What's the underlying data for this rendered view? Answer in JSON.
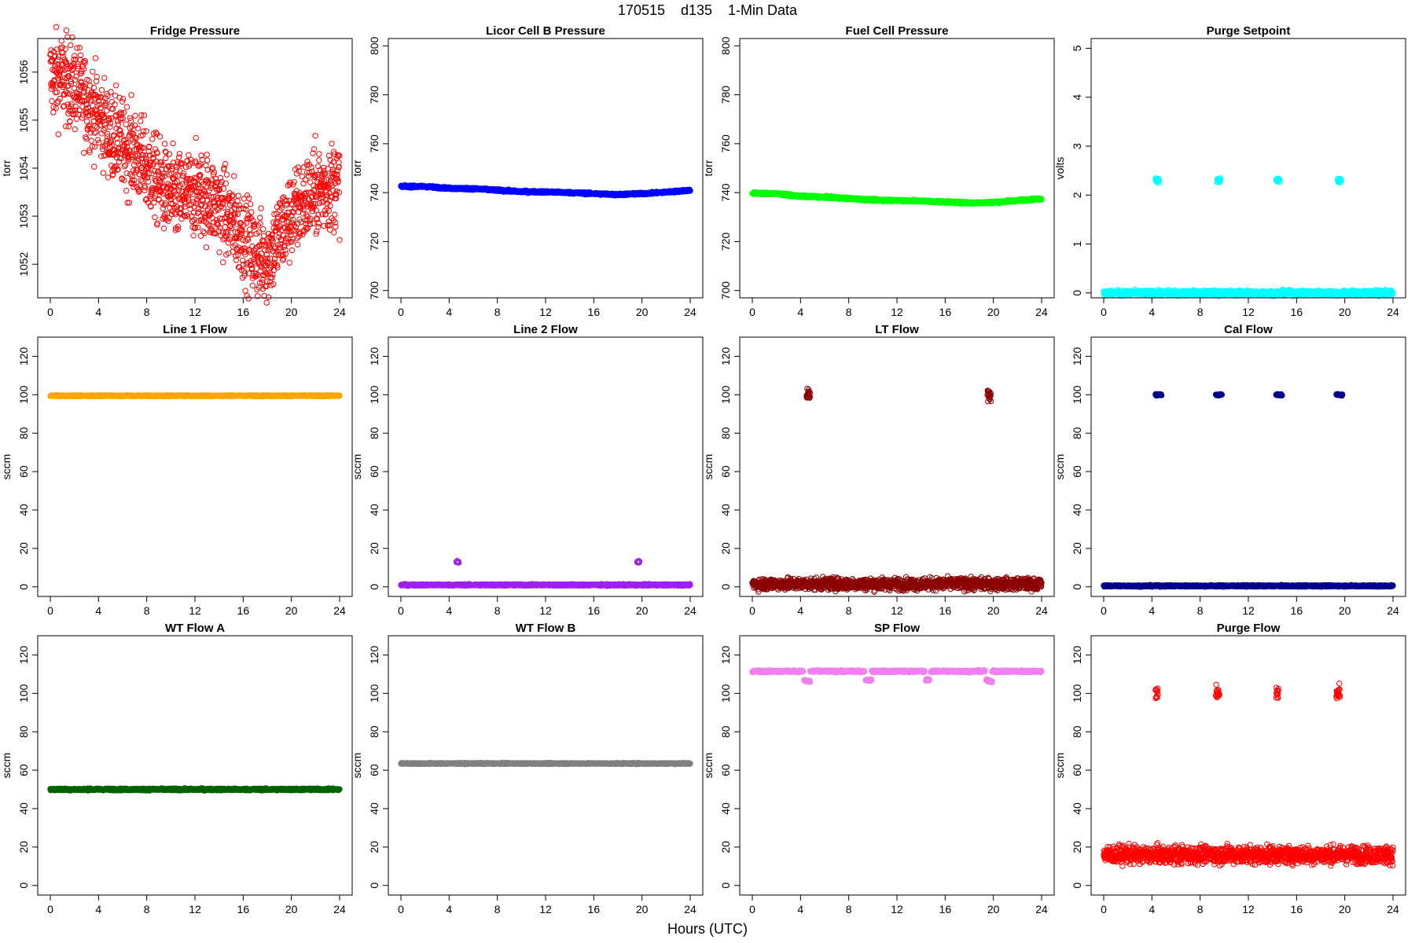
{
  "figure": {
    "title": "170515    d135    1-Min Data",
    "xlabel": "Hours (UTC)"
  },
  "chart_data": [
    {
      "type": "scatter",
      "title": "Fridge Pressure",
      "ylabel": "torr",
      "color": "#ff0000",
      "marker": "hollow-circle",
      "xlim": [
        0,
        24
      ],
      "ylim": [
        1051.3,
        1056.7
      ],
      "xticks": [
        0,
        4,
        8,
        12,
        16,
        20,
        24
      ],
      "yticks": [
        1052,
        1053,
        1054,
        1055,
        1056
      ],
      "segments": [
        {
          "x": [
            0,
            1,
            2,
            3,
            4,
            5,
            6,
            7,
            8,
            9,
            10,
            11,
            12,
            13,
            14,
            15,
            16,
            17,
            18,
            19,
            20,
            21,
            22,
            23,
            24
          ],
          "y": [
            1055.9,
            1055.9,
            1055.7,
            1055.4,
            1055.1,
            1054.7,
            1054.5,
            1054.3,
            1054.0,
            1053.7,
            1053.4,
            1053.4,
            1053.5,
            1053.4,
            1053.2,
            1052.9,
            1052.6,
            1052.2,
            1052.1,
            1052.6,
            1053.0,
            1053.3,
            1053.5,
            1053.6,
            1053.7
          ]
        }
      ],
      "spread": 0.9
    },
    {
      "type": "scatter",
      "title": "Licor Cell B Pressure",
      "ylabel": "torr",
      "color": "#0000ff",
      "marker": "hollow-circle",
      "xlim": [
        0,
        24
      ],
      "ylim": [
        697,
        803
      ],
      "xticks": [
        0,
        4,
        8,
        12,
        16,
        20,
        24
      ],
      "yticks": [
        700,
        720,
        740,
        760,
        780,
        800
      ],
      "segments": [
        {
          "x": [
            0,
            2,
            4,
            6,
            8,
            10,
            12,
            14,
            16,
            18,
            20,
            22,
            24
          ],
          "y": [
            742.5,
            742.5,
            741.8,
            741.6,
            741.0,
            740.4,
            740.3,
            740.0,
            739.6,
            739.2,
            739.6,
            740.2,
            741.0
          ]
        }
      ],
      "spread": 0.4
    },
    {
      "type": "scatter",
      "title": "Fuel Cell Pressure",
      "ylabel": "torr",
      "color": "#00ff00",
      "marker": "hollow-circle",
      "xlim": [
        0,
        24
      ],
      "ylim": [
        697,
        803
      ],
      "xticks": [
        0,
        4,
        8,
        12,
        16,
        20,
        24
      ],
      "yticks": [
        700,
        720,
        740,
        760,
        780,
        800
      ],
      "segments": [
        {
          "x": [
            0,
            2,
            4,
            6,
            8,
            10,
            12,
            14,
            16,
            18,
            20,
            22,
            24
          ],
          "y": [
            739.8,
            739.6,
            738.5,
            738.2,
            737.6,
            737.0,
            736.8,
            736.6,
            736.2,
            735.8,
            736.0,
            736.8,
            737.5
          ]
        }
      ],
      "spread": 0.4
    },
    {
      "type": "scatter",
      "title": "Purge Setpoint",
      "ylabel": "volts",
      "color": "#00ffff",
      "marker": "hollow-circle",
      "xlim": [
        0,
        24
      ],
      "ylim": [
        -0.1,
        5.2
      ],
      "xticks": [
        0,
        4,
        8,
        12,
        16,
        20,
        24
      ],
      "yticks": [
        0,
        1,
        2,
        3,
        4,
        5
      ],
      "segments": [
        {
          "x": [
            0,
            24
          ],
          "y": [
            0,
            0
          ]
        },
        {
          "x": [
            4.3,
            4.6
          ],
          "y": [
            2.3,
            2.3
          ]
        },
        {
          "x": [
            9.4,
            9.7
          ],
          "y": [
            2.3,
            2.3
          ]
        },
        {
          "x": [
            14.3,
            14.6
          ],
          "y": [
            2.3,
            2.3
          ]
        },
        {
          "x": [
            19.4,
            19.7
          ],
          "y": [
            2.3,
            2.3
          ]
        }
      ],
      "spread": 0.05
    },
    {
      "type": "scatter",
      "title": "Line 1 Flow",
      "ylabel": "sccm",
      "color": "#ffa500",
      "marker": "hollow-circle",
      "xlim": [
        0,
        24
      ],
      "ylim": [
        -5,
        130
      ],
      "xticks": [
        0,
        4,
        8,
        12,
        16,
        20,
        24
      ],
      "yticks": [
        0,
        20,
        40,
        60,
        80,
        100,
        120
      ],
      "segments": [
        {
          "x": [
            0,
            24
          ],
          "y": [
            99.5,
            99.5
          ]
        }
      ],
      "spread": 0.3
    },
    {
      "type": "scatter",
      "title": "Line 2 Flow",
      "ylabel": "sccm",
      "color": "#a020f0",
      "marker": "hollow-circle",
      "xlim": [
        0,
        24
      ],
      "ylim": [
        -5,
        130
      ],
      "xticks": [
        0,
        4,
        8,
        12,
        16,
        20,
        24
      ],
      "yticks": [
        0,
        20,
        40,
        60,
        80,
        100,
        120
      ],
      "segments": [
        {
          "x": [
            0,
            24
          ],
          "y": [
            1,
            1
          ]
        },
        {
          "x": [
            4.8,
            4.8,
            4.8,
            4.6
          ],
          "y": [
            13,
            5,
            2,
            -3
          ]
        },
        {
          "x": [
            19.8,
            19.8,
            19.8,
            19.6
          ],
          "y": [
            13,
            5,
            2,
            -3
          ]
        }
      ],
      "spread": 0.4
    },
    {
      "type": "scatter",
      "title": "LT Flow",
      "ylabel": "sccm",
      "color": "#8b0000",
      "marker": "hollow-circle",
      "xlim": [
        0,
        24
      ],
      "ylim": [
        -5,
        130
      ],
      "xticks": [
        0,
        4,
        8,
        12,
        16,
        20,
        24
      ],
      "yticks": [
        0,
        20,
        40,
        60,
        80,
        100,
        120
      ],
      "segments": [
        {
          "x": [
            0,
            24
          ],
          "y": [
            1.5,
            1.5
          ]
        },
        {
          "x": [
            4.5,
            4.8
          ],
          "y": [
            100,
            100
          ]
        },
        {
          "x": [
            19.5,
            19.8
          ],
          "y": [
            100,
            100
          ]
        }
      ],
      "spread": 3.0
    },
    {
      "type": "scatter",
      "title": "Cal Flow",
      "ylabel": "sccm",
      "color": "#00008b",
      "marker": "hollow-circle",
      "xlim": [
        0,
        24
      ],
      "ylim": [
        -5,
        130
      ],
      "xticks": [
        0,
        4,
        8,
        12,
        16,
        20,
        24
      ],
      "yticks": [
        0,
        20,
        40,
        60,
        80,
        100,
        120
      ],
      "segments": [
        {
          "x": [
            0,
            24
          ],
          "y": [
            0.5,
            0.5
          ]
        },
        {
          "x": [
            4.3,
            4.8
          ],
          "y": [
            100,
            100
          ]
        },
        {
          "x": [
            9.3,
            9.8
          ],
          "y": [
            100,
            100
          ]
        },
        {
          "x": [
            14.3,
            14.8
          ],
          "y": [
            100,
            100
          ]
        },
        {
          "x": [
            19.3,
            19.8
          ],
          "y": [
            100,
            100
          ]
        }
      ],
      "spread": 0.4
    },
    {
      "type": "scatter",
      "title": "WT Flow A",
      "ylabel": "sccm",
      "color": "#006400",
      "marker": "hollow-circle",
      "xlim": [
        0,
        24
      ],
      "ylim": [
        -5,
        130
      ],
      "xticks": [
        0,
        4,
        8,
        12,
        16,
        20,
        24
      ],
      "yticks": [
        0,
        20,
        40,
        60,
        80,
        100,
        120
      ],
      "segments": [
        {
          "x": [
            0,
            24
          ],
          "y": [
            50,
            50
          ]
        }
      ],
      "spread": 0.5
    },
    {
      "type": "scatter",
      "title": "WT Flow B",
      "ylabel": "sccm",
      "color": "#808080",
      "marker": "hollow-circle",
      "xlim": [
        0,
        24
      ],
      "ylim": [
        -5,
        130
      ],
      "xticks": [
        0,
        4,
        8,
        12,
        16,
        20,
        24
      ],
      "yticks": [
        0,
        20,
        40,
        60,
        80,
        100,
        120
      ],
      "segments": [
        {
          "x": [
            0,
            24
          ],
          "y": [
            63.5,
            63.5
          ]
        }
      ],
      "spread": 0.3
    },
    {
      "type": "scatter",
      "title": "SP Flow",
      "ylabel": "sccm",
      "color": "#ee82ee",
      "marker": "hollow-circle",
      "xlim": [
        0,
        24
      ],
      "ylim": [
        -5,
        130
      ],
      "xticks": [
        0,
        4,
        8,
        12,
        16,
        20,
        24
      ],
      "yticks": [
        0,
        20,
        40,
        60,
        80,
        100,
        120
      ],
      "segments": [
        {
          "x": [
            0,
            4.2
          ],
          "y": [
            111.5,
            111.5
          ]
        },
        {
          "x": [
            4.8,
            9.3
          ],
          "y": [
            111.5,
            111.5
          ]
        },
        {
          "x": [
            9.9,
            14.3
          ],
          "y": [
            111.5,
            111.5
          ]
        },
        {
          "x": [
            14.8,
            19.3
          ],
          "y": [
            111.5,
            111.5
          ]
        },
        {
          "x": [
            19.9,
            24
          ],
          "y": [
            111.5,
            111.5
          ]
        },
        {
          "x": [
            4.3,
            4.8
          ],
          "y": [
            107,
            106
          ]
        },
        {
          "x": [
            9.4,
            9.9
          ],
          "y": [
            107,
            107
          ]
        },
        {
          "x": [
            14.4,
            14.7
          ],
          "y": [
            107,
            107
          ]
        },
        {
          "x": [
            19.4,
            19.9
          ],
          "y": [
            107,
            106
          ]
        }
      ],
      "spread": 0.5
    },
    {
      "type": "scatter",
      "title": "Purge Flow",
      "ylabel": "sccm",
      "color": "#ff0000",
      "marker": "hollow-circle",
      "xlim": [
        0,
        24
      ],
      "ylim": [
        -5,
        130
      ],
      "xticks": [
        0,
        4,
        8,
        12,
        16,
        20,
        24
      ],
      "yticks": [
        0,
        20,
        40,
        60,
        80,
        100,
        120
      ],
      "segments": [
        {
          "x": [
            0,
            24
          ],
          "y": [
            16,
            16
          ]
        },
        {
          "x": [
            4.3,
            4.5
          ],
          "y": [
            100,
            99.5
          ]
        },
        {
          "x": [
            9.3,
            9.6
          ],
          "y": [
            100,
            99.5
          ]
        },
        {
          "x": [
            14.3,
            14.5
          ],
          "y": [
            100,
            99.5
          ]
        },
        {
          "x": [
            19.3,
            19.6
          ],
          "y": [
            100,
            99.5
          ]
        }
      ],
      "spread": 4.5
    }
  ]
}
